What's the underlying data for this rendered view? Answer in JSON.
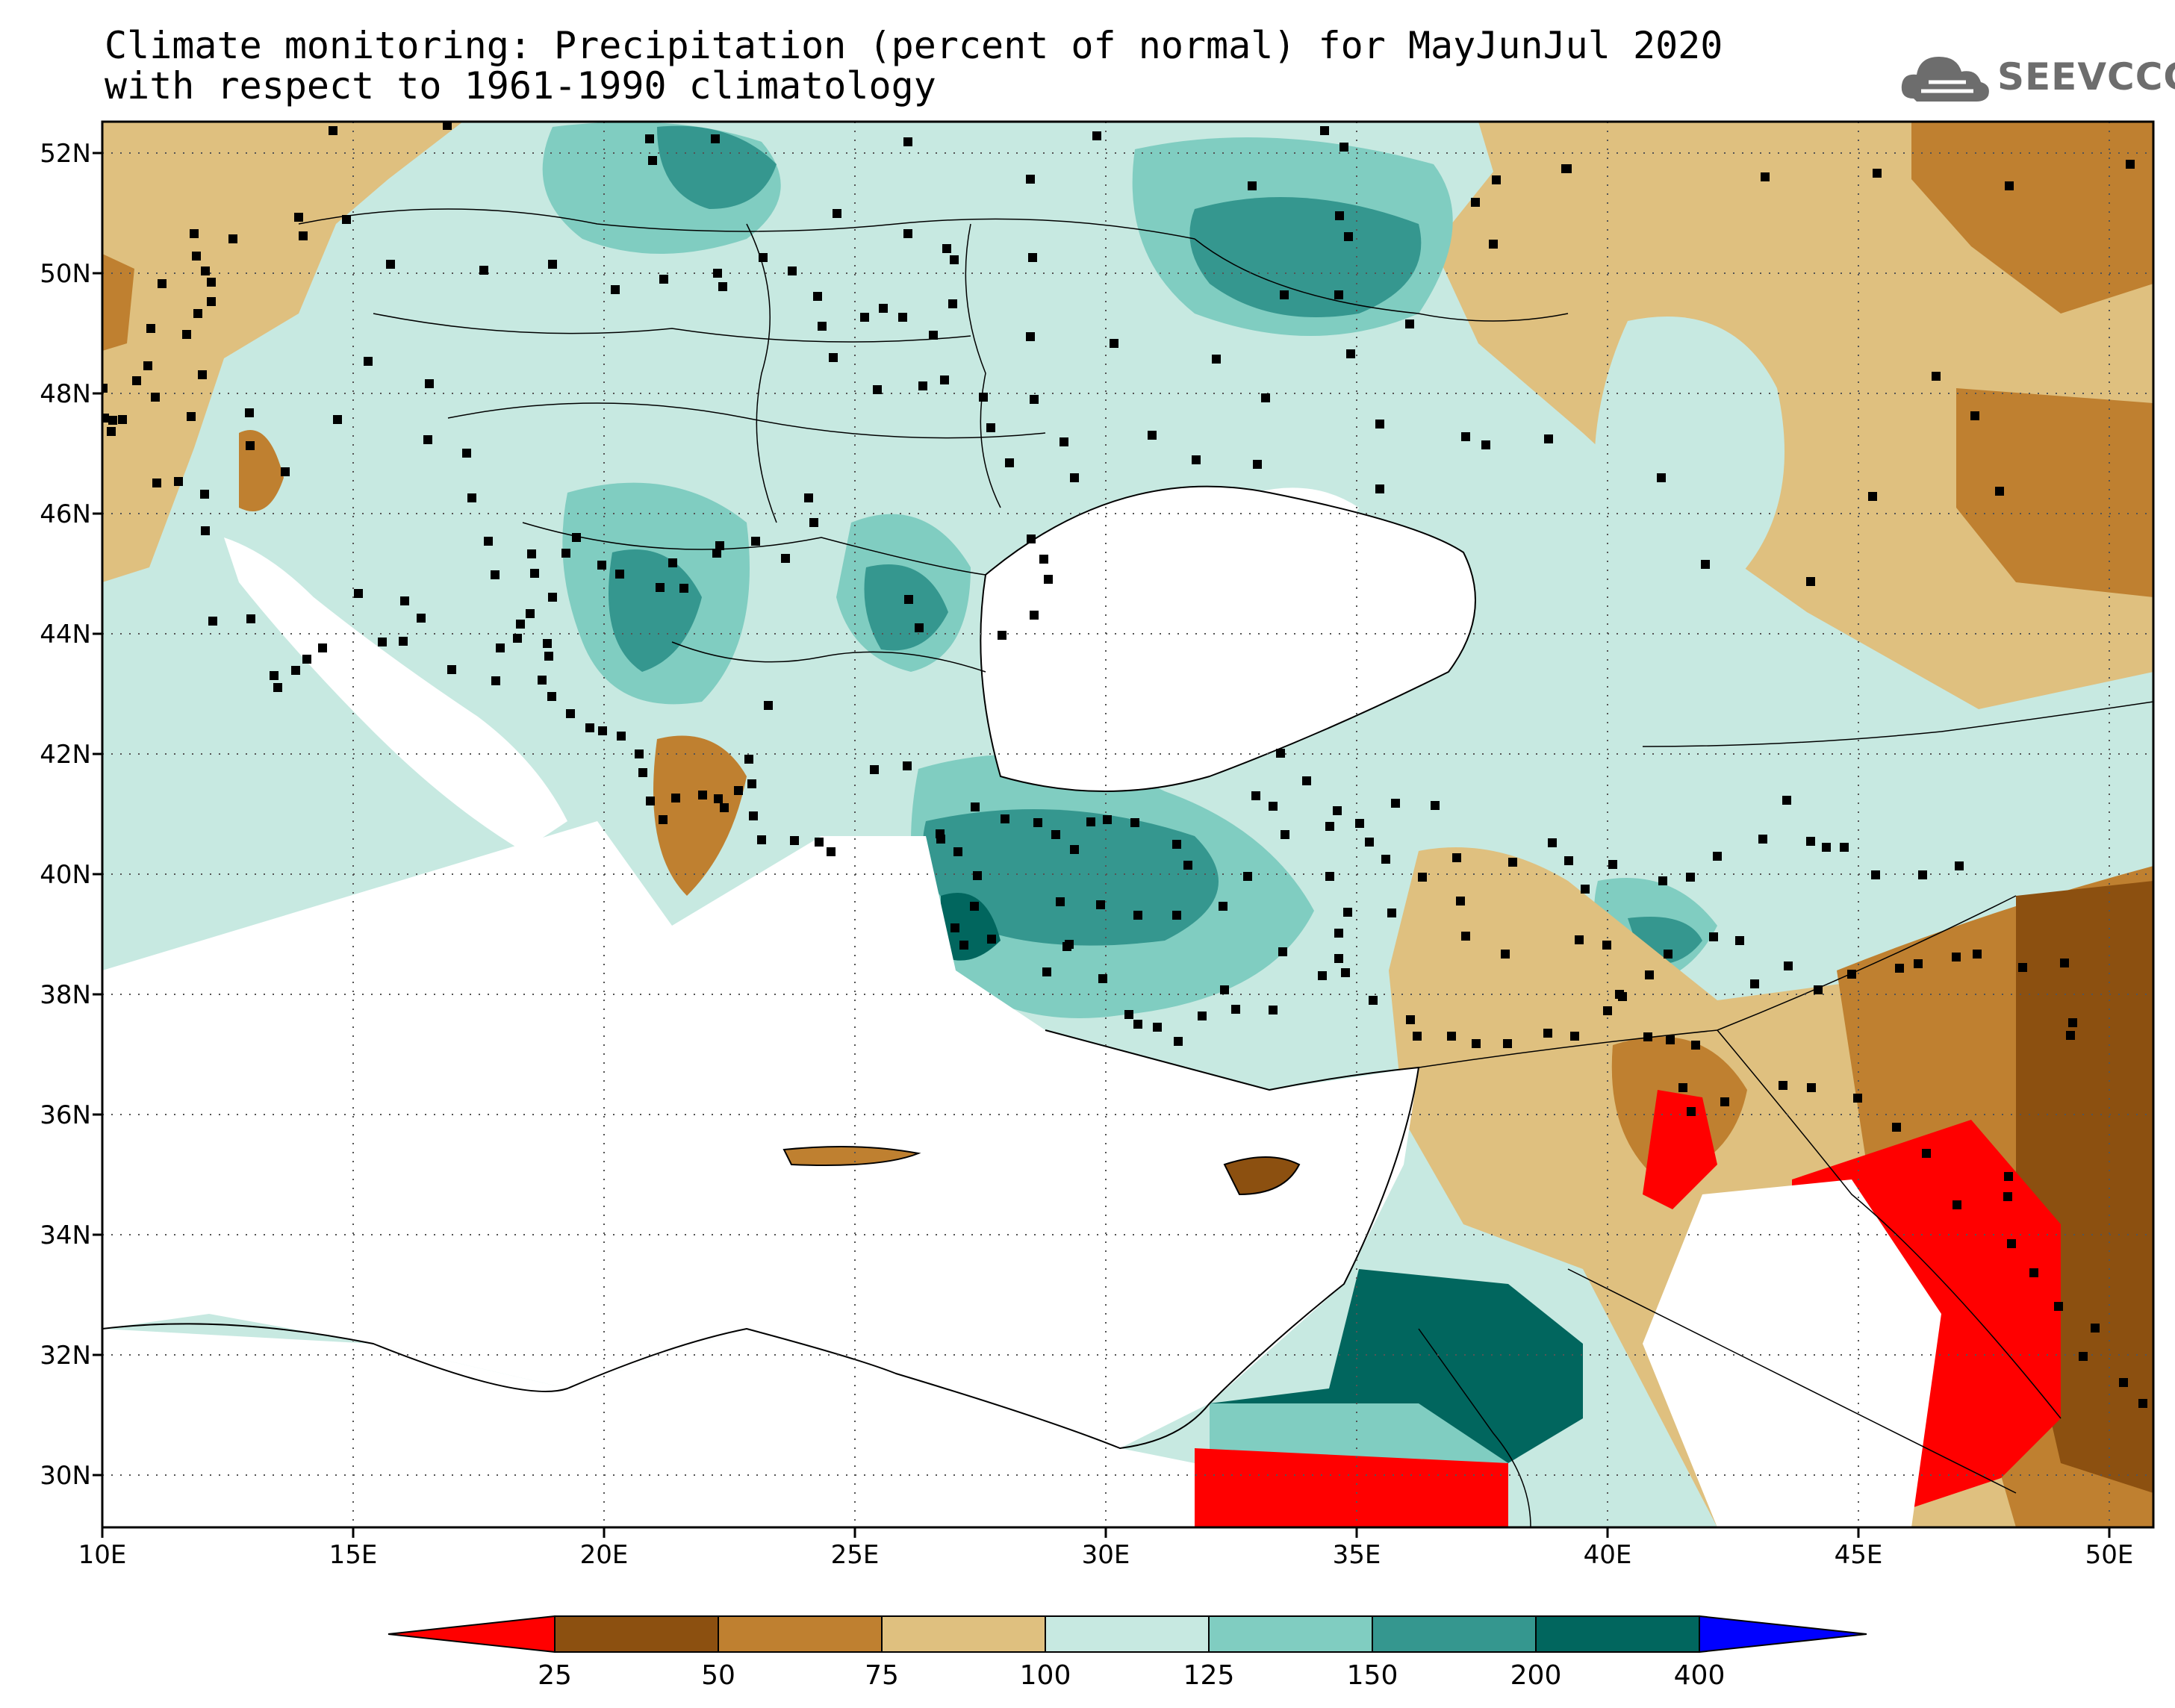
{
  "title": {
    "line1": "Climate monitoring: Precipitation (percent of normal) for MayJunJul 2020",
    "line2": "with respect to 1961-1990 climatology"
  },
  "logo": {
    "text": "SEEVCCC",
    "icon": "cloud-icon"
  },
  "axes": {
    "lon_labels": [
      "10E",
      "15E",
      "20E",
      "25E",
      "30E",
      "35E",
      "40E",
      "45E",
      "50E"
    ],
    "lat_labels": [
      "52N",
      "50N",
      "48N",
      "46N",
      "44N",
      "42N",
      "40N",
      "38N",
      "36N",
      "34N",
      "32N",
      "30N"
    ]
  },
  "colorbar": {
    "breaks": [
      "25",
      "50",
      "75",
      "100",
      "125",
      "150",
      "200",
      "400"
    ],
    "colors": {
      "below_25": "#ff0000",
      "25_50": "#8c5010",
      "50_75": "#bf8030",
      "75_100": "#dfc07f",
      "100_125": "#c7e9e1",
      "125_150": "#80cdc1",
      "150_200": "#35978f",
      "200_400": "#01665e",
      "above_400": "#0000ff"
    }
  },
  "colors": {
    "sea": "#ffffff",
    "station": "#000000",
    "gridline": "#555555"
  }
}
